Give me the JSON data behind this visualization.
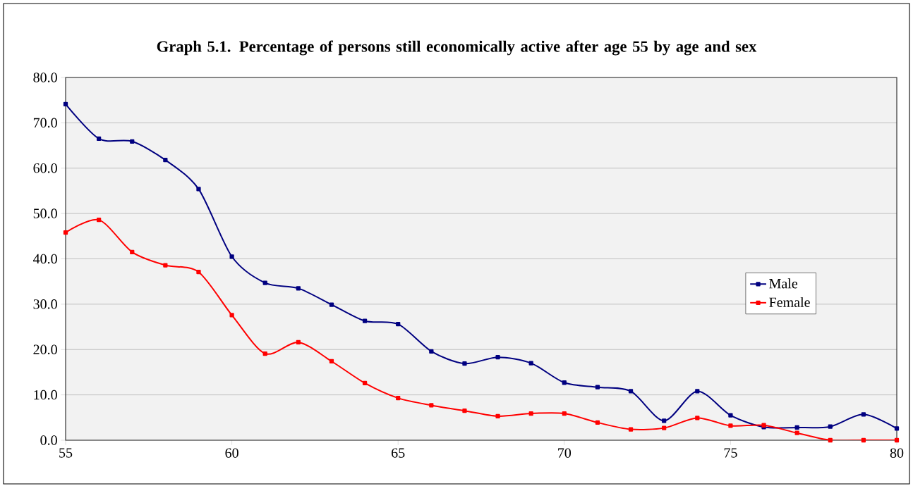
{
  "chart_data": {
    "type": "line",
    "title": "Graph 5.1. Percentage of persons still economically active after age 55 by age and sex",
    "x": [
      55,
      56,
      57,
      58,
      59,
      60,
      61,
      62,
      63,
      64,
      65,
      66,
      67,
      68,
      69,
      70,
      71,
      72,
      73,
      74,
      75,
      76,
      77,
      78,
      79,
      80
    ],
    "series": [
      {
        "name": "Male",
        "color": "#000080",
        "values": [
          74.1,
          66.5,
          65.9,
          61.8,
          55.4,
          40.5,
          34.7,
          33.5,
          29.9,
          26.3,
          25.6,
          19.6,
          16.9,
          18.3,
          17.0,
          12.7,
          11.7,
          10.8,
          4.3,
          10.8,
          5.5,
          2.9,
          2.8,
          3.0,
          5.7,
          2.6
        ]
      },
      {
        "name": "Female",
        "color": "#ff0000",
        "values": [
          45.8,
          48.6,
          41.5,
          38.6,
          37.1,
          27.6,
          19.1,
          21.6,
          17.4,
          12.6,
          9.3,
          7.7,
          6.5,
          5.3,
          5.9,
          5.9,
          3.9,
          2.4,
          2.7,
          4.9,
          3.2,
          3.3,
          1.6,
          0.0,
          0.0,
          0.0
        ]
      }
    ],
    "xlim": [
      55,
      80
    ],
    "xticks": [
      55,
      60,
      65,
      70,
      75,
      80
    ],
    "ylim": [
      0,
      80
    ],
    "yticks": [
      {
        "value": 0,
        "label": "0.0"
      },
      {
        "value": 10,
        "label": "10.0"
      },
      {
        "value": 20,
        "label": "20.0"
      },
      {
        "value": 30,
        "label": "30.0"
      },
      {
        "value": 40,
        "label": "40.0"
      },
      {
        "value": 50,
        "label": "50.0"
      },
      {
        "value": 60,
        "label": "60.0"
      },
      {
        "value": 70,
        "label": "70.0"
      },
      {
        "value": 80,
        "label": "80.0"
      }
    ],
    "grid": "y",
    "legend": "right",
    "marker": "square",
    "line_style": "solid"
  }
}
